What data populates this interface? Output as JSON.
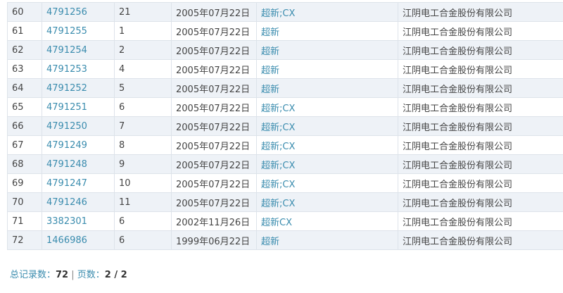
{
  "rows": [
    {
      "no": "60",
      "reg": "4791256",
      "cls": "21",
      "date": "2005年07月22日",
      "status": "超新;CX",
      "owner": "江阴电工合金股份有限公司"
    },
    {
      "no": "61",
      "reg": "4791255",
      "cls": "1",
      "date": "2005年07月22日",
      "status": "超新",
      "owner": "江阴电工合金股份有限公司"
    },
    {
      "no": "62",
      "reg": "4791254",
      "cls": "2",
      "date": "2005年07月22日",
      "status": "超新",
      "owner": "江阴电工合金股份有限公司"
    },
    {
      "no": "63",
      "reg": "4791253",
      "cls": "4",
      "date": "2005年07月22日",
      "status": "超新",
      "owner": "江阴电工合金股份有限公司"
    },
    {
      "no": "64",
      "reg": "4791252",
      "cls": "5",
      "date": "2005年07月22日",
      "status": "超新",
      "owner": "江阴电工合金股份有限公司"
    },
    {
      "no": "65",
      "reg": "4791251",
      "cls": "6",
      "date": "2005年07月22日",
      "status": "超新;CX",
      "owner": "江阴电工合金股份有限公司"
    },
    {
      "no": "66",
      "reg": "4791250",
      "cls": "7",
      "date": "2005年07月22日",
      "status": "超新;CX",
      "owner": "江阴电工合金股份有限公司"
    },
    {
      "no": "67",
      "reg": "4791249",
      "cls": "8",
      "date": "2005年07月22日",
      "status": "超新;CX",
      "owner": "江阴电工合金股份有限公司"
    },
    {
      "no": "68",
      "reg": "4791248",
      "cls": "9",
      "date": "2005年07月22日",
      "status": "超新;CX",
      "owner": "江阴电工合金股份有限公司"
    },
    {
      "no": "69",
      "reg": "4791247",
      "cls": "10",
      "date": "2005年07月22日",
      "status": "超新;CX",
      "owner": "江阴电工合金股份有限公司"
    },
    {
      "no": "70",
      "reg": "4791246",
      "cls": "11",
      "date": "2005年07月22日",
      "status": "超新;CX",
      "owner": "江阴电工合金股份有限公司"
    },
    {
      "no": "71",
      "reg": "3382301",
      "cls": "6",
      "date": "2002年11月26日",
      "status": "超新CX",
      "owner": "江阴电工合金股份有限公司"
    },
    {
      "no": "72",
      "reg": "1466986",
      "cls": "6",
      "date": "1999年06月22日",
      "status": "超新",
      "owner": "江阴电工合金股份有限公司"
    }
  ],
  "footer": {
    "total_label": "总记录数：",
    "total": "72",
    "sep": "|",
    "pages_label": "页数：",
    "pages": "2 / 2"
  }
}
